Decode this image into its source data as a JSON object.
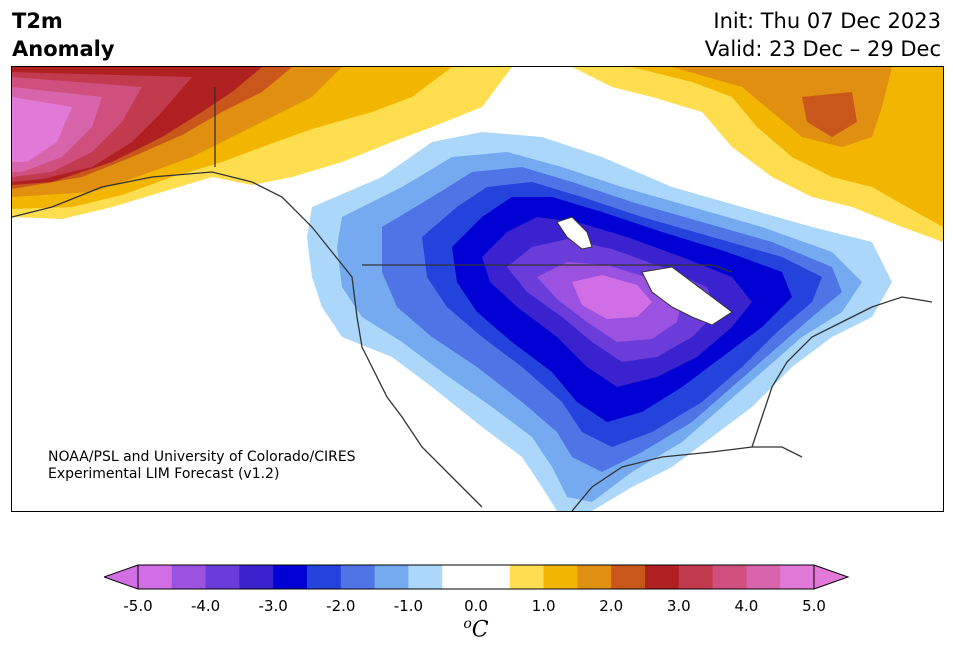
{
  "title": {
    "left_line1": "T2m",
    "left_line2": "Anomaly",
    "right_line1": "Init: Thu 07 Dec 2023",
    "right_line2": "Valid: 23 Dec – 29 Dec"
  },
  "credit": {
    "line1": "NOAA/PSL and University of Colorado/CIRES",
    "line2": "Experimental LIM Forecast (v1.2)"
  },
  "colorbar": {
    "unit_base": "C",
    "unit_sup": "o",
    "ticks": [
      "-5.0",
      "-4.0",
      "-3.0",
      "-2.0",
      "-1.0",
      "0.0",
      "1.0",
      "2.0",
      "3.0",
      "4.0",
      "5.0"
    ],
    "colors": [
      "#d16ee6",
      "#9b52e0",
      "#6a3cd9",
      "#3a22cf",
      "#0000d4",
      "#2442dc",
      "#4f74e6",
      "#76aaf0",
      "#aad7fa",
      "#ffffff",
      "#ffffff",
      "#fedd4e",
      "#f2b600",
      "#e08f10",
      "#c9561a",
      "#b02020",
      "#c23a4e",
      "#cf4f7e",
      "#d865ab",
      "#e278d8"
    ],
    "under_color": "#d16ee6",
    "over_color": "#e278d8"
  }
}
